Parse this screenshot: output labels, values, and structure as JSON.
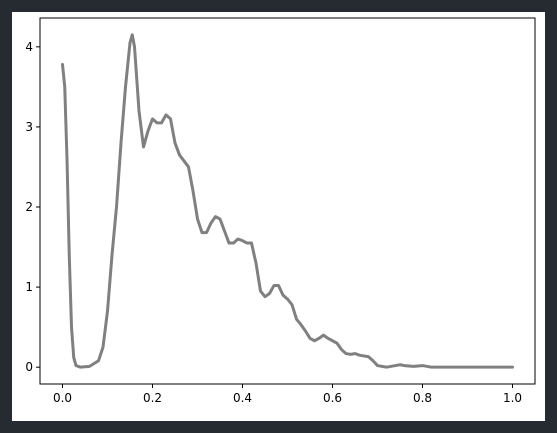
{
  "chart_data": {
    "type": "line",
    "x": [
      0.0,
      0.005,
      0.01,
      0.015,
      0.02,
      0.025,
      0.03,
      0.04,
      0.06,
      0.08,
      0.09,
      0.1,
      0.11,
      0.12,
      0.13,
      0.14,
      0.15,
      0.155,
      0.16,
      0.17,
      0.18,
      0.19,
      0.2,
      0.21,
      0.22,
      0.23,
      0.24,
      0.25,
      0.26,
      0.28,
      0.29,
      0.3,
      0.31,
      0.32,
      0.33,
      0.34,
      0.35,
      0.36,
      0.37,
      0.38,
      0.39,
      0.4,
      0.41,
      0.42,
      0.43,
      0.44,
      0.45,
      0.46,
      0.47,
      0.48,
      0.49,
      0.5,
      0.51,
      0.52,
      0.53,
      0.54,
      0.55,
      0.56,
      0.57,
      0.58,
      0.59,
      0.6,
      0.61,
      0.62,
      0.63,
      0.64,
      0.65,
      0.66,
      0.68,
      0.69,
      0.7,
      0.72,
      0.74,
      0.75,
      0.76,
      0.78,
      0.8,
      0.82,
      0.85,
      0.9,
      0.95,
      1.0
    ],
    "series": [
      {
        "color": "#808080",
        "values": [
          3.78,
          3.5,
          2.6,
          1.4,
          0.5,
          0.12,
          0.02,
          0.0,
          0.01,
          0.08,
          0.25,
          0.7,
          1.4,
          2.0,
          2.8,
          3.5,
          4.05,
          4.15,
          4.0,
          3.2,
          2.75,
          2.95,
          3.1,
          3.05,
          3.05,
          3.15,
          3.1,
          2.8,
          2.65,
          2.5,
          2.2,
          1.85,
          1.68,
          1.68,
          1.8,
          1.88,
          1.85,
          1.7,
          1.55,
          1.55,
          1.6,
          1.58,
          1.55,
          1.55,
          1.3,
          0.95,
          0.88,
          0.92,
          1.02,
          1.02,
          0.9,
          0.85,
          0.78,
          0.6,
          0.53,
          0.45,
          0.36,
          0.33,
          0.36,
          0.4,
          0.36,
          0.33,
          0.3,
          0.22,
          0.17,
          0.16,
          0.17,
          0.15,
          0.13,
          0.08,
          0.02,
          0.0,
          0.02,
          0.03,
          0.02,
          0.01,
          0.02,
          0.0,
          0.0,
          0.0,
          0.0,
          0.0
        ]
      }
    ],
    "xlim": [
      -0.05,
      1.05
    ],
    "ylim": [
      -0.21,
      4.36
    ],
    "xticks": [
      {
        "value": 0,
        "label": "0.0"
      },
      0.2,
      0.4,
      0.6,
      0.8,
      {
        "value": 1,
        "label": "1.0"
      }
    ],
    "yticks": [
      0,
      1,
      2,
      3,
      4
    ]
  }
}
